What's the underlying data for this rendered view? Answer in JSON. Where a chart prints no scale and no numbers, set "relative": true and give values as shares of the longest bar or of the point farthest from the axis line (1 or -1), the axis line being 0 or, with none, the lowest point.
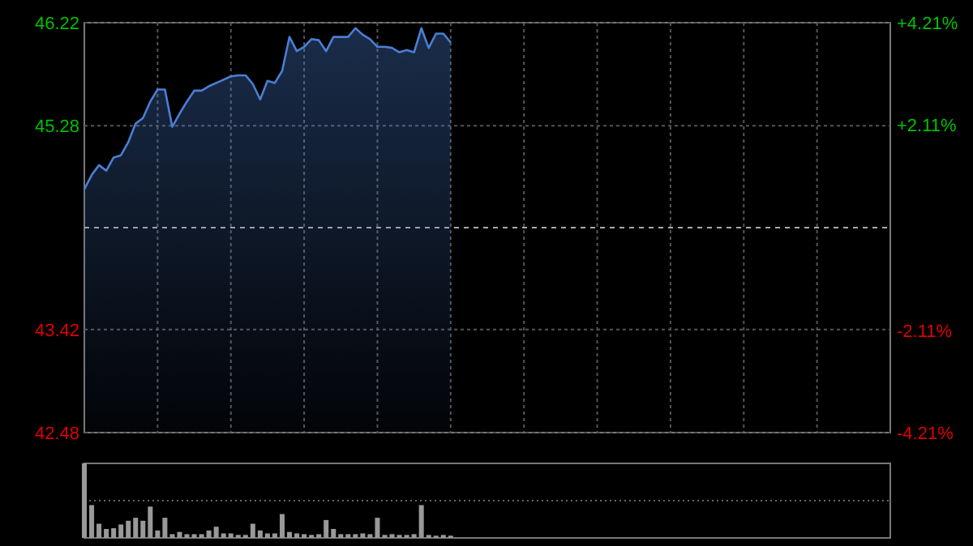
{
  "chart_data": [
    {
      "type": "area",
      "categories": [
        null,
        null,
        null,
        null,
        null,
        null,
        null,
        null,
        null,
        null,
        null,
        null,
        null,
        null,
        null,
        null,
        null,
        null,
        null,
        null,
        null,
        null,
        null,
        null,
        null,
        null,
        null,
        null,
        null,
        null,
        null,
        null,
        null,
        null,
        null,
        null,
        null,
        null,
        null,
        null,
        null,
        null,
        null,
        null,
        null,
        null,
        null,
        null,
        null,
        null,
        null,
        null,
        null,
        null,
        null,
        null,
        null,
        null,
        null,
        null,
        null,
        null,
        null,
        null,
        null,
        null,
        null,
        null,
        null,
        null,
        null,
        null,
        null,
        null,
        null,
        null,
        null,
        null,
        null,
        null,
        null,
        null,
        null,
        null,
        null,
        null,
        null,
        null,
        null,
        null,
        null,
        null,
        null,
        null,
        null,
        null,
        null,
        null,
        null,
        null,
        null,
        null,
        null,
        null,
        null,
        null,
        null,
        null,
        null,
        null,
        null
      ],
      "series": [
        {
          "color": "#4a7fd4",
          "values": [
            44.7,
            44.83,
            44.92,
            44.87,
            44.99,
            45.01,
            45.13,
            45.3,
            45.35,
            45.5,
            45.61,
            45.61,
            45.27,
            45.39,
            45.5,
            45.6,
            45.6,
            45.64,
            45.67,
            45.7,
            45.73,
            45.74,
            45.74,
            45.66,
            45.52,
            45.69,
            45.67,
            45.78,
            46.09,
            45.96,
            46.0,
            46.07,
            46.06,
            45.96,
            46.09,
            46.09,
            46.09,
            46.17,
            46.11,
            46.07,
            46.0,
            46.0,
            45.99,
            45.95,
            45.97,
            45.95,
            46.17,
            45.99,
            46.12,
            46.12,
            46.04,
            null,
            null,
            null,
            null,
            null,
            null,
            null,
            null,
            null,
            null,
            null,
            null,
            null,
            null,
            null,
            null,
            null,
            null,
            null,
            null,
            null,
            null,
            null,
            null,
            null,
            null,
            null,
            null,
            null,
            null,
            null,
            null,
            null,
            null,
            null,
            null,
            null,
            null,
            null,
            null,
            null,
            null,
            null,
            null,
            null,
            null,
            null,
            null,
            null,
            null,
            null,
            null,
            null,
            null,
            null,
            null,
            null,
            null,
            null,
            null
          ]
        }
      ],
      "ylim": [
        42.48,
        46.22
      ],
      "yticks": [
        46.22,
        45.28,
        43.42,
        42.48
      ],
      "y2lim": [
        -4.21,
        4.21
      ],
      "y2ticks": [
        {
          "value": 4.21,
          "label": "+4.21%"
        },
        {
          "value": 2.11,
          "label": "+2.11%"
        },
        {
          "value": -2.11,
          "label": "-2.11%"
        },
        {
          "value": -4.21,
          "label": "-4.21%"
        }
      ],
      "ref_lines": [
        {
          "axis": "y",
          "value": 44.35,
          "color": "#aaaaaa",
          "line_style": "dashed"
        }
      ],
      "grid": true,
      "tick_labels": "y"
    },
    {
      "type": "bar",
      "relative": true,
      "categories": [
        null,
        null,
        null,
        null,
        null,
        null,
        null,
        null,
        null,
        null,
        null,
        null,
        null,
        null,
        null,
        null,
        null,
        null,
        null,
        null,
        null,
        null,
        null,
        null,
        null,
        null,
        null,
        null,
        null,
        null,
        null,
        null,
        null,
        null,
        null,
        null,
        null,
        null,
        null,
        null,
        null,
        null,
        null,
        null,
        null,
        null,
        null,
        null,
        null,
        null,
        null,
        null,
        null,
        null,
        null,
        null,
        null,
        null,
        null,
        null,
        null,
        null,
        null,
        null,
        null,
        null,
        null,
        null,
        null,
        null,
        null,
        null,
        null,
        null,
        null,
        null,
        null,
        null,
        null,
        null,
        null,
        null,
        null,
        null,
        null,
        null,
        null,
        null,
        null,
        null,
        null,
        null,
        null,
        null,
        null,
        null,
        null,
        null,
        null,
        null,
        null,
        null,
        null,
        null,
        null,
        null,
        null,
        null,
        null,
        null,
        null
      ],
      "series": [
        {
          "color": "#999999",
          "values": [
            1.0,
            0.44,
            0.19,
            0.12,
            0.13,
            0.18,
            0.23,
            0.27,
            0.23,
            0.42,
            0.1,
            0.27,
            0.05,
            0.08,
            0.05,
            0.05,
            0.05,
            0.1,
            0.15,
            0.06,
            0.06,
            0.04,
            0.04,
            0.19,
            0.1,
            0.06,
            0.06,
            0.32,
            0.08,
            0.06,
            0.05,
            0.04,
            0.05,
            0.24,
            0.12,
            0.05,
            0.05,
            0.05,
            0.06,
            0.05,
            0.27,
            0.04,
            0.05,
            0.04,
            0.04,
            0.05,
            0.44,
            0.04,
            0.03,
            0.04,
            0.03,
            null,
            null,
            null,
            null,
            null,
            null,
            null,
            null,
            null,
            null,
            null,
            null,
            null,
            null,
            null,
            null,
            null,
            null,
            null,
            null,
            null,
            null,
            null,
            null,
            null,
            null,
            null,
            null,
            null,
            null,
            null,
            null,
            null,
            null,
            null,
            null,
            null,
            null,
            null,
            null,
            null,
            null,
            null,
            null,
            null,
            null,
            null,
            null,
            null,
            null,
            null,
            null,
            null,
            null,
            null,
            null,
            null,
            null,
            null,
            null
          ]
        }
      ],
      "ref_lines": [
        {
          "axis": "y",
          "value": 0.5,
          "color": "#666666",
          "line_style": "dotted"
        }
      ],
      "tick_labels": false
    }
  ]
}
